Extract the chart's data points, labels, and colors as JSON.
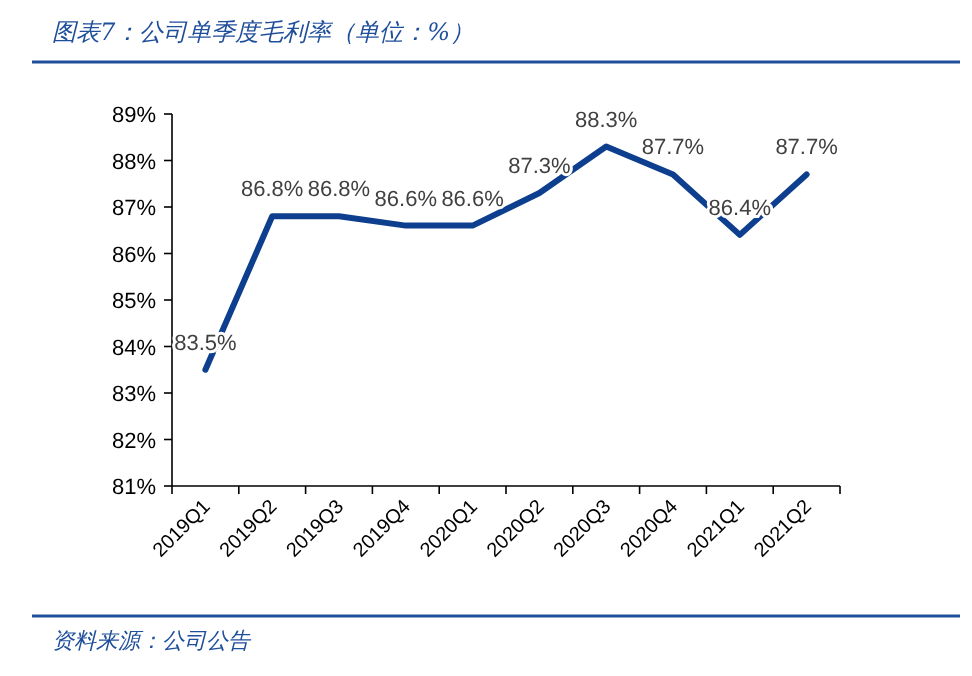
{
  "chart_data": {
    "type": "line",
    "title": "图表7：公司单季度毛利率（单位：%）",
    "annotations": [
      "资料来源：公司公告"
    ],
    "categories": [
      "2019Q1",
      "2019Q2",
      "2019Q3",
      "2019Q4",
      "2020Q1",
      "2020Q2",
      "2020Q3",
      "2020Q4",
      "2021Q1",
      "2021Q2"
    ],
    "values": [
      83.5,
      86.8,
      86.8,
      86.6,
      86.6,
      87.3,
      88.3,
      87.7,
      86.4,
      87.7
    ],
    "value_labels": [
      "83.5%",
      "86.8%",
      "86.8%",
      "86.6%",
      "86.6%",
      "87.3%",
      "88.3%",
      "87.7%",
      "86.4%",
      "87.7%"
    ],
    "color": "#0e3f8f",
    "ylim": [
      81,
      89
    ],
    "yticks": [
      {
        "value": 81,
        "label": "81%"
      },
      {
        "value": 82,
        "label": "82%"
      },
      {
        "value": 83,
        "label": "83%"
      },
      {
        "value": 84,
        "label": "84%"
      },
      {
        "value": 85,
        "label": "85%"
      },
      {
        "value": 86,
        "label": "86%"
      },
      {
        "value": 87,
        "label": "87%"
      },
      {
        "value": 88,
        "label": "88%"
      },
      {
        "value": 89,
        "label": "89%"
      }
    ],
    "marker": "none",
    "line_style": "solid"
  }
}
